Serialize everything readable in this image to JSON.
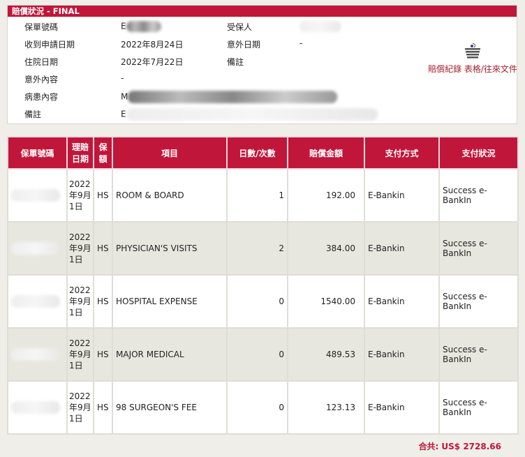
{
  "panel": {
    "title": "賠償狀況 - FINAL",
    "fields": [
      {
        "label": "保單號碼",
        "value": "E"
      },
      {
        "label": "收到申請日期",
        "value": "2022年8月24日"
      },
      {
        "label": "住院日期",
        "value": "2022年7月22日"
      },
      {
        "label": "意外內容",
        "value": "-"
      },
      {
        "label": "病患內容",
        "value": "M"
      },
      {
        "label": "備註",
        "value": "E"
      }
    ],
    "right_fields": [
      {
        "label": "受保人",
        "value": ""
      },
      {
        "label": "意外日期",
        "value": "-"
      },
      {
        "label": "備註",
        "value": ""
      }
    ],
    "doc_link": "賠償紀錄 表格/往來文件",
    "doc_icon": "basket-icon"
  },
  "table": {
    "headers": [
      "保單號碼",
      "理賠日期",
      "保額",
      "項目",
      "日數/次數",
      "賠償金額",
      "支付方式",
      "支付狀況"
    ],
    "rows": [
      {
        "date": "2022年9月1日",
        "cov": "HS",
        "item": "ROOM & BOARD",
        "days": "1",
        "amount": "192.00",
        "method": "E-Bankin",
        "status": "Success e-BankIn"
      },
      {
        "date": "2022年9月1日",
        "cov": "HS",
        "item": "PHYSICIAN'S VISITS",
        "days": "2",
        "amount": "384.00",
        "method": "E-Bankin",
        "status": "Success e-BankIn"
      },
      {
        "date": "2022年9月1日",
        "cov": "HS",
        "item": "HOSPITAL EXPENSE",
        "days": "0",
        "amount": "1540.00",
        "method": "E-Bankin",
        "status": "Success e-BankIn"
      },
      {
        "date": "2022年9月1日",
        "cov": "HS",
        "item": "MAJOR MEDICAL",
        "days": "0",
        "amount": "489.53",
        "method": "E-Bankin",
        "status": "Success e-BankIn"
      },
      {
        "date": "2022年9月1日",
        "cov": "HS",
        "item": "98 SURGEON'S FEE",
        "days": "0",
        "amount": "123.13",
        "method": "E-Bankin",
        "status": "Success e-BankIn"
      }
    ]
  },
  "total": "合共: US$ 2728.66",
  "colors": {
    "accent": "#c0163a",
    "alt_row": "#e8e7df"
  }
}
